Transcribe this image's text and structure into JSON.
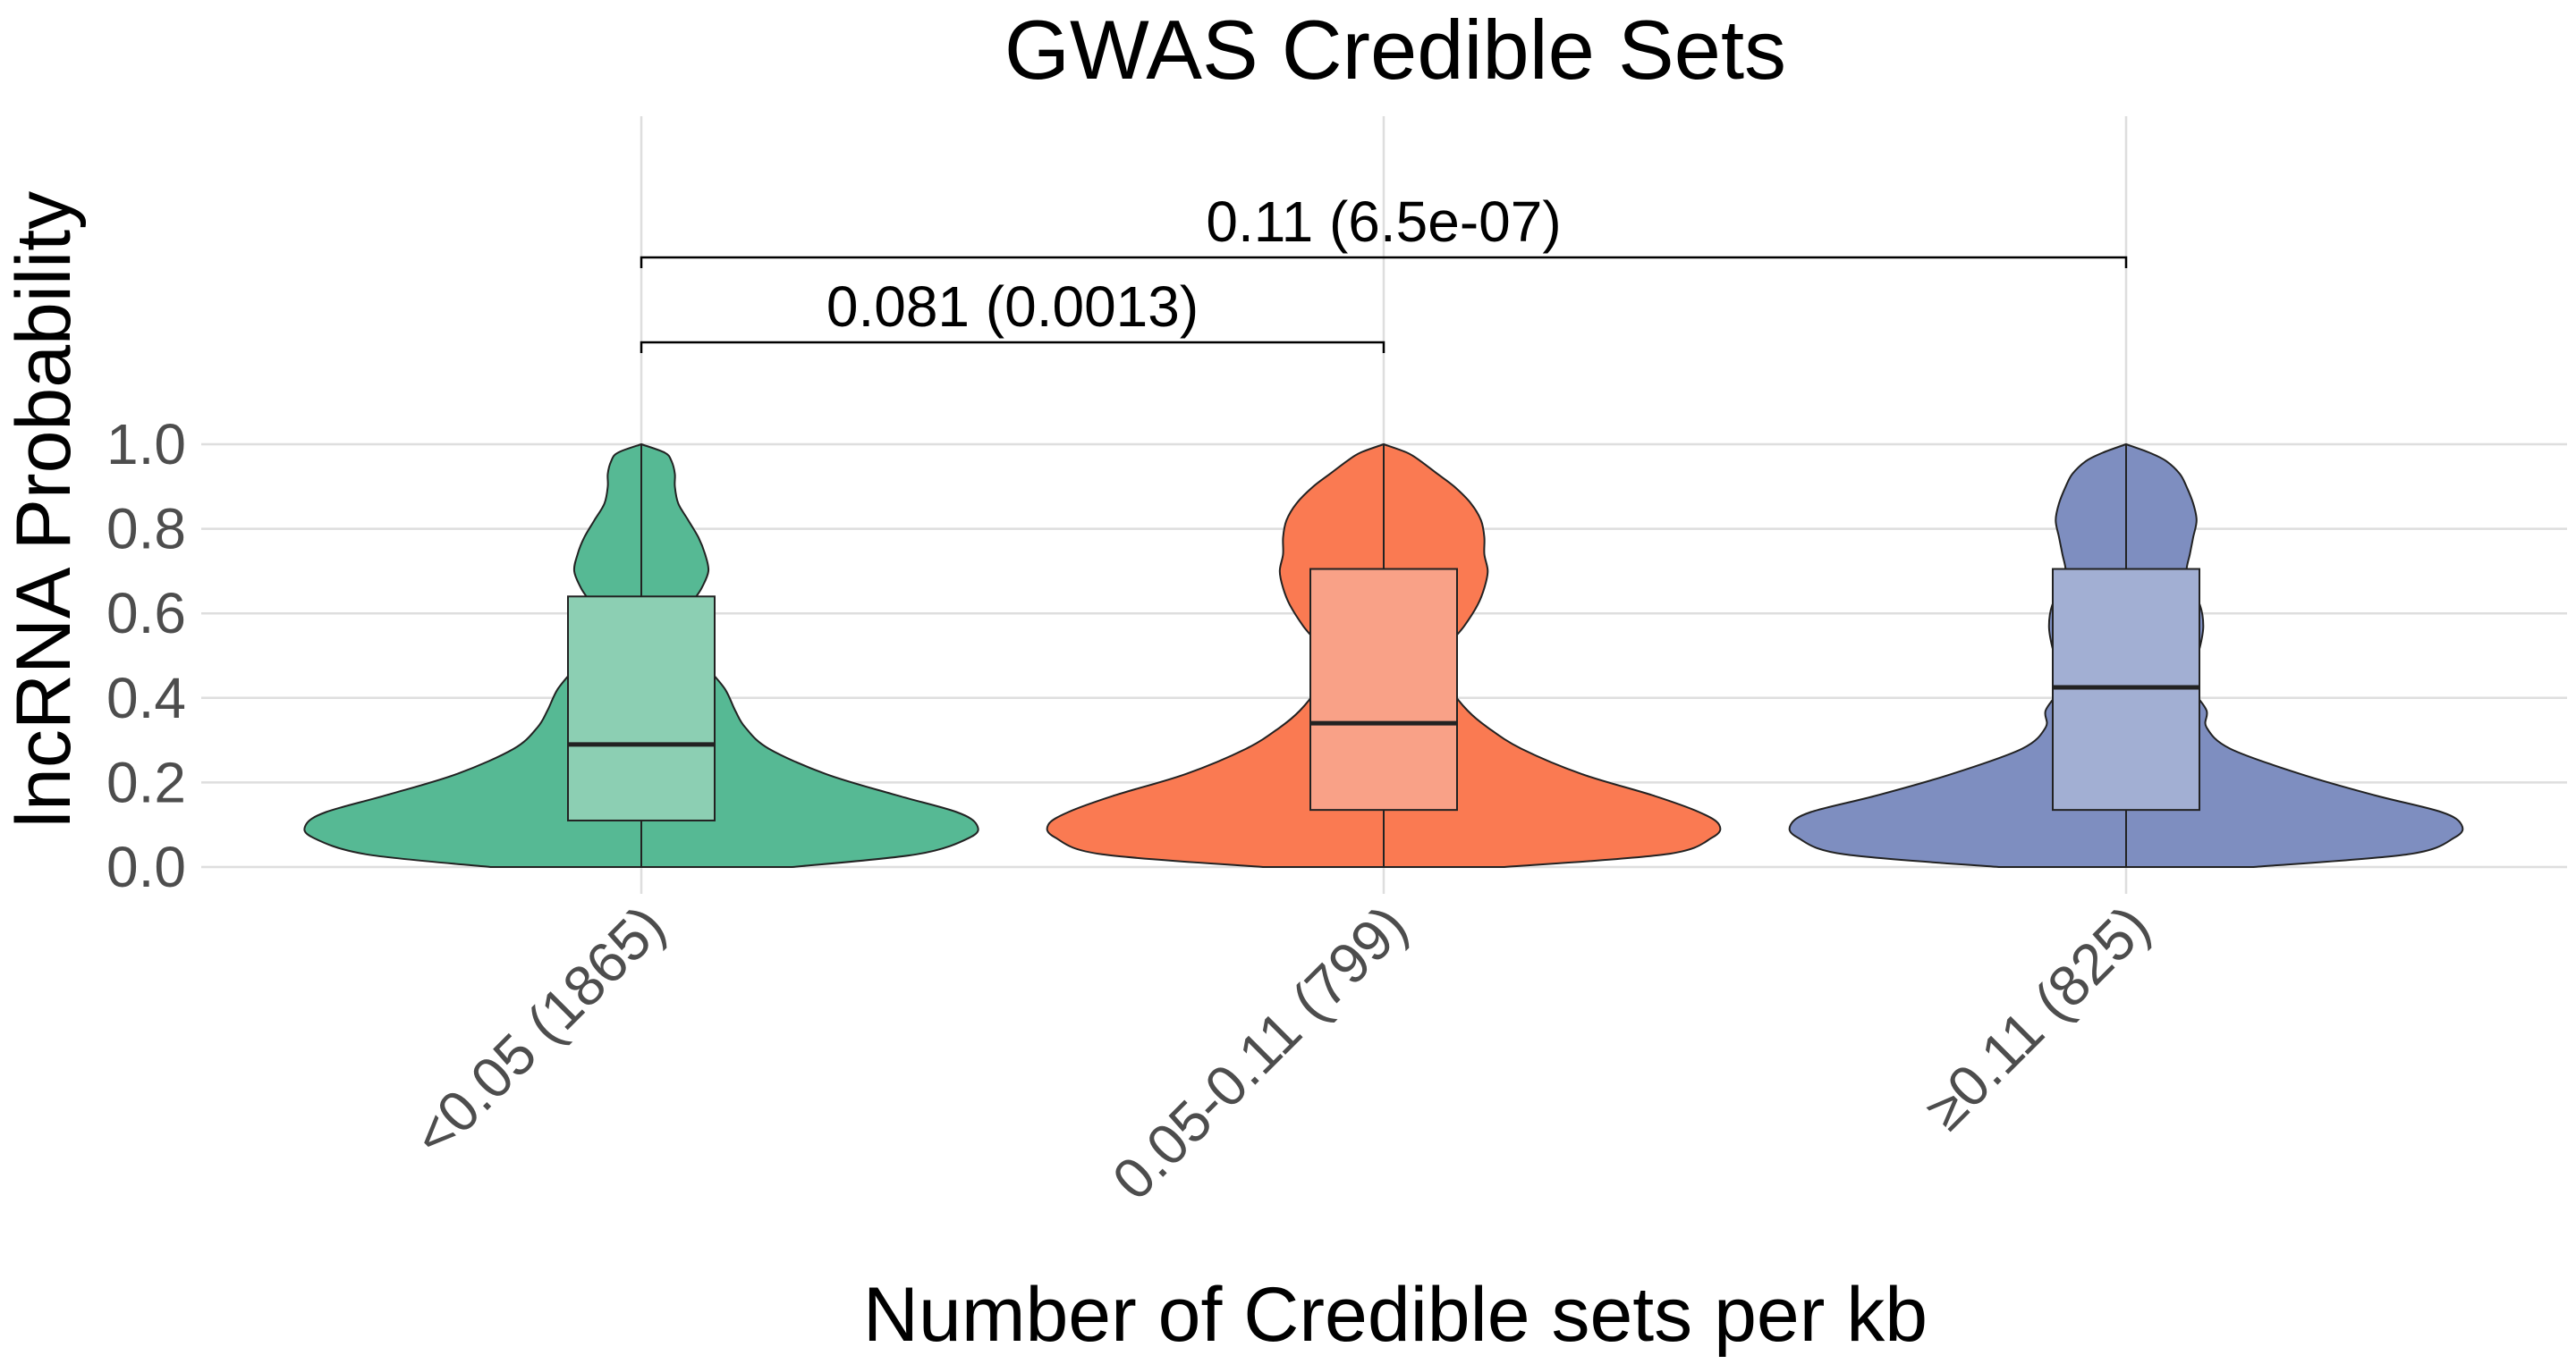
{
  "chart_data": {
    "type": "violin",
    "title": "GWAS Credible Sets",
    "xlabel": "Number of Credible sets per kb",
    "ylabel": "lncRNA Probability",
    "ylim": [
      0,
      1
    ],
    "yticks": [
      0.0,
      0.2,
      0.4,
      0.6,
      0.8,
      1.0
    ],
    "grid": true,
    "categories": [
      "<0.05 (1865)",
      "0.05-0.11 (799)",
      "≥0.11 (825)"
    ],
    "colors": [
      "#56b994",
      "#fa7a52",
      "#7e8ec0"
    ],
    "box_colors": [
      "#8ccfb3",
      "#f9a187",
      "#a2afd3"
    ],
    "boxes": [
      {
        "q1": 0.11,
        "median": 0.29,
        "q3": 0.64,
        "min": 0.0,
        "max": 1.0
      },
      {
        "q1": 0.135,
        "median": 0.34,
        "q3": 0.705,
        "min": 0.0,
        "max": 1.0
      },
      {
        "q1": 0.135,
        "median": 0.425,
        "q3": 0.705,
        "min": 0.0,
        "max": 1.0
      }
    ],
    "density_y": [
      0.0,
      0.03,
      0.07,
      0.1,
      0.13,
      0.17,
      0.22,
      0.28,
      0.33,
      0.37,
      0.42,
      0.47,
      0.52,
      0.57,
      0.62,
      0.66,
      0.7,
      0.74,
      0.78,
      0.82,
      0.86,
      0.9,
      0.93,
      0.96,
      0.98,
      1.0
    ],
    "density_halfwidth": [
      [
        0.45,
        0.82,
        0.98,
        1.0,
        0.94,
        0.76,
        0.55,
        0.38,
        0.31,
        0.28,
        0.25,
        0.2,
        0.16,
        0.14,
        0.15,
        0.18,
        0.2,
        0.19,
        0.17,
        0.14,
        0.11,
        0.1,
        0.1,
        0.09,
        0.07,
        0.0
      ],
      [
        0.36,
        0.84,
        0.98,
        1.0,
        0.94,
        0.8,
        0.59,
        0.41,
        0.31,
        0.25,
        0.2,
        0.17,
        0.19,
        0.24,
        0.28,
        0.3,
        0.31,
        0.3,
        0.3,
        0.29,
        0.26,
        0.21,
        0.16,
        0.11,
        0.07,
        0.0
      ],
      [
        0.38,
        0.84,
        0.98,
        1.0,
        0.94,
        0.74,
        0.52,
        0.31,
        0.24,
        0.24,
        0.2,
        0.2,
        0.22,
        0.23,
        0.22,
        0.19,
        0.18,
        0.19,
        0.2,
        0.21,
        0.2,
        0.18,
        0.16,
        0.12,
        0.07,
        0.0
      ]
    ],
    "comparisons": [
      {
        "from": 0,
        "to": 1,
        "label": "0.081 (0.0013)"
      },
      {
        "from": 0,
        "to": 2,
        "label": "0.11 (6.5e-07)"
      }
    ]
  }
}
